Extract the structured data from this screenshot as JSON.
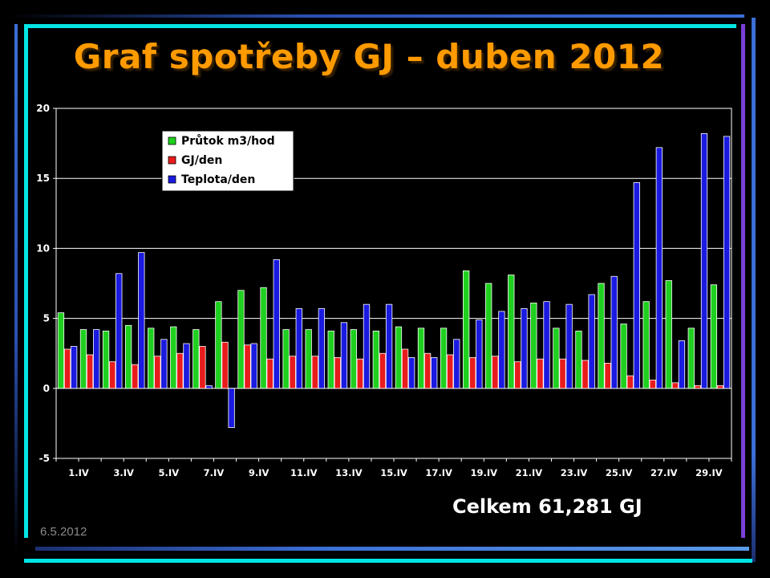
{
  "slide": {
    "title": "Graf spotřeby GJ – duben 2012",
    "total": "Celkem 61,281 GJ",
    "date": "6.5.2012"
  },
  "colors": {
    "title": "#ff9a00",
    "plot_background": "#000000",
    "axis": "#ffffff",
    "frame_cyan": "#00e5e5",
    "frame_blue": "#3b6fd6",
    "frame_purple": "#7a3fd8"
  },
  "chart_data": {
    "type": "bar",
    "title": "",
    "xlabel": "",
    "ylabel": "",
    "ylim": [
      -5,
      20
    ],
    "yticks": [
      -5,
      0,
      5,
      10,
      15,
      20
    ],
    "grid": true,
    "legend_position": "top-left",
    "categories": [
      "1.IV",
      "2.IV",
      "3.IV",
      "4.IV",
      "5.IV",
      "6.IV",
      "7.IV",
      "8.IV",
      "9.IV",
      "10.IV",
      "11.IV",
      "12.IV",
      "13.IV",
      "14.IV",
      "15.IV",
      "16.IV",
      "17.IV",
      "18.IV",
      "19.IV",
      "20.IV",
      "21.IV",
      "22.IV",
      "23.IV",
      "24.IV",
      "25.IV",
      "26.IV",
      "27.IV",
      "28.IV",
      "29.IV",
      "30.IV"
    ],
    "tick_labels": [
      "1.IV",
      "3.IV",
      "5.IV",
      "7.IV",
      "9.IV",
      "11.IV",
      "13.IV",
      "15.IV",
      "17.IV",
      "19.IV",
      "21.IV",
      "23.IV",
      "25.IV",
      "27.IV",
      "29.IV"
    ],
    "series": [
      {
        "name": "Průtok m3/hod",
        "color": "#1fd01f",
        "values": [
          5.4,
          4.2,
          4.1,
          4.5,
          4.3,
          4.4,
          4.2,
          6.2,
          7.0,
          7.2,
          4.2,
          4.2,
          4.1,
          4.2,
          4.1,
          4.4,
          4.3,
          4.3,
          8.4,
          7.5,
          8.1,
          6.1,
          4.3,
          4.1,
          7.5,
          4.6,
          6.2,
          7.7,
          4.3,
          7.4
        ]
      },
      {
        "name": "GJ/den",
        "color": "#e81c1c",
        "values": [
          2.8,
          2.4,
          1.9,
          1.7,
          2.3,
          2.5,
          3.0,
          3.3,
          3.1,
          2.1,
          2.3,
          2.3,
          2.2,
          2.1,
          2.5,
          2.8,
          2.5,
          2.4,
          2.2,
          2.3,
          1.9,
          2.1,
          2.1,
          2.0,
          1.8,
          0.9,
          0.6,
          0.4,
          0.2,
          0.2
        ]
      },
      {
        "name": "Teplota/den",
        "color": "#1a1ae0",
        "values": [
          3.0,
          4.2,
          8.2,
          9.7,
          3.5,
          3.2,
          0.2,
          -2.8,
          3.2,
          9.2,
          5.7,
          5.7,
          4.7,
          6.0,
          6.0,
          2.2,
          2.2,
          3.5,
          4.9,
          5.5,
          5.7,
          6.2,
          6.0,
          6.7,
          8.0,
          14.7,
          17.2,
          3.4,
          18.2,
          18.0
        ]
      }
    ]
  }
}
